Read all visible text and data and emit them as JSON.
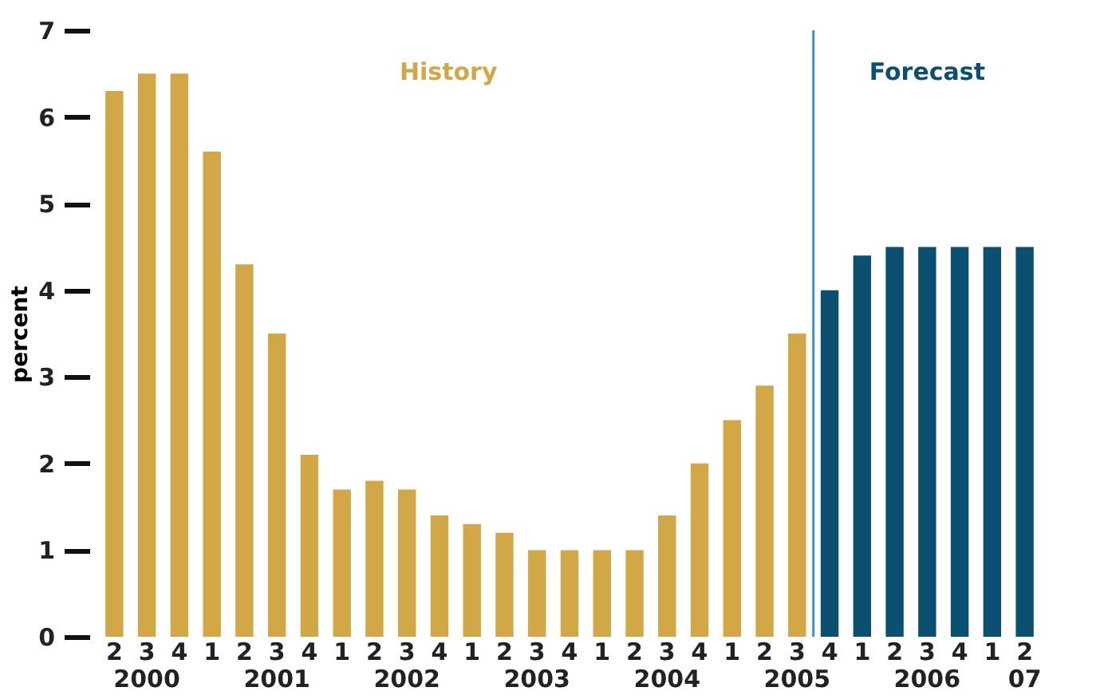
{
  "chart_data": {
    "type": "bar",
    "ylabel": "percent",
    "categories": [
      "2",
      "3\n2000",
      "4",
      "1",
      "2",
      "3\n2001",
      "4",
      "1",
      "2",
      "3\n2002",
      "4",
      "1",
      "2",
      "3\n2003",
      "4",
      "1",
      "2",
      "3\n2004",
      "4",
      "1",
      "2",
      "3\n2005",
      "4",
      "1",
      "2",
      "3\n2006",
      "4",
      "1",
      "2\n07"
    ],
    "series": [
      {
        "name": "History",
        "color": "#d1a845",
        "values": [
          6.3,
          6.5,
          6.5,
          5.6,
          4.3,
          3.5,
          2.1,
          1.7,
          1.8,
          1.7,
          1.4,
          1.3,
          1.2,
          1.0,
          1.0,
          1.0,
          1.0,
          1.4,
          2.0,
          2.5,
          2.9,
          3.5,
          null,
          null,
          null,
          null,
          null,
          null,
          null
        ]
      },
      {
        "name": "Forecast",
        "color": "#0b5071",
        "values": [
          null,
          null,
          null,
          null,
          null,
          null,
          null,
          null,
          null,
          null,
          null,
          null,
          null,
          null,
          null,
          null,
          null,
          null,
          null,
          null,
          null,
          null,
          4.0,
          4.4,
          4.5,
          4.5,
          4.5,
          4.5,
          4.5
        ]
      }
    ],
    "ylim": [
      0,
      7
    ],
    "yticks": [
      0,
      1,
      2,
      3,
      4,
      5,
      6,
      7
    ],
    "grid": false,
    "ref_lines": [
      {
        "axis": "x",
        "value": "3\n2005",
        "color": "#3d8fcd"
      }
    ]
  }
}
